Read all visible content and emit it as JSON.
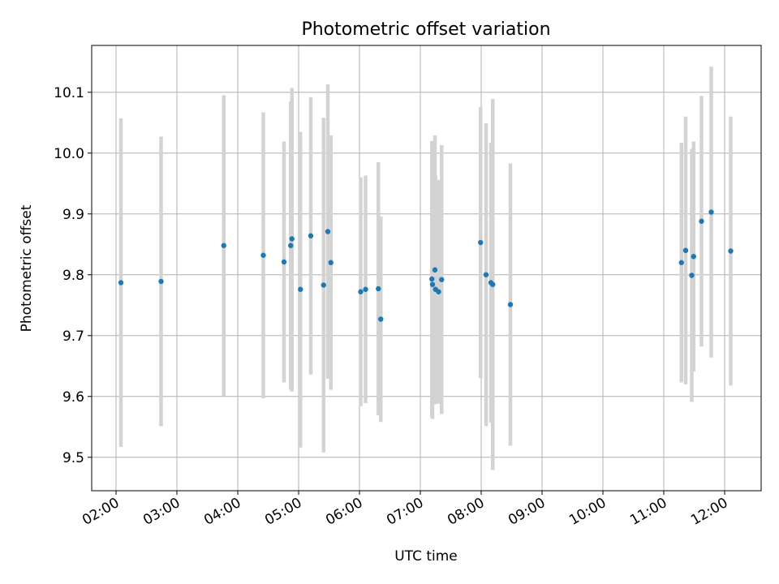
{
  "chart_data": {
    "type": "scatter",
    "title": "Photometric offset variation",
    "xlabel": "UTC time",
    "ylabel": "Photometric offset",
    "x_unit": "hours UTC",
    "xlim": [
      1.6,
      12.6
    ],
    "ylim": [
      9.445,
      10.177
    ],
    "x_ticks": [
      2,
      3,
      4,
      5,
      6,
      7,
      8,
      9,
      10,
      11,
      12
    ],
    "x_tick_labels": [
      "02:00",
      "03:00",
      "04:00",
      "05:00",
      "06:00",
      "07:00",
      "08:00",
      "09:00",
      "10:00",
      "11:00",
      "12:00"
    ],
    "y_ticks": [
      9.5,
      9.6,
      9.7,
      9.8,
      9.9,
      10.0,
      10.1
    ],
    "y_tick_labels": [
      "9.5",
      "9.6",
      "9.7",
      "9.8",
      "9.9",
      "10.0",
      "10.1"
    ],
    "grid": true,
    "point_color": "#1f77b4",
    "errorbar_color": "#d3d3d3",
    "points": [
      {
        "x": 2.08,
        "y": 9.787,
        "ylo": 9.517,
        "yhi": 10.057
      },
      {
        "x": 2.74,
        "y": 9.789,
        "ylo": 9.551,
        "yhi": 10.027
      },
      {
        "x": 3.77,
        "y": 9.848,
        "ylo": 9.601,
        "yhi": 10.095
      },
      {
        "x": 4.42,
        "y": 9.832,
        "ylo": 9.597,
        "yhi": 10.067
      },
      {
        "x": 4.76,
        "y": 9.821,
        "ylo": 9.623,
        "yhi": 10.019
      },
      {
        "x": 4.87,
        "y": 9.848,
        "ylo": 9.611,
        "yhi": 10.085
      },
      {
        "x": 4.89,
        "y": 9.859,
        "ylo": 9.608,
        "yhi": 10.107
      },
      {
        "x": 5.03,
        "y": 9.776,
        "ylo": 9.516,
        "yhi": 10.035
      },
      {
        "x": 5.2,
        "y": 9.864,
        "ylo": 9.636,
        "yhi": 10.092
      },
      {
        "x": 5.41,
        "y": 9.783,
        "ylo": 9.508,
        "yhi": 10.058
      },
      {
        "x": 5.48,
        "y": 9.871,
        "ylo": 9.629,
        "yhi": 10.113
      },
      {
        "x": 5.53,
        "y": 9.82,
        "ylo": 9.611,
        "yhi": 10.029
      },
      {
        "x": 6.02,
        "y": 9.772,
        "ylo": 9.584,
        "yhi": 9.96
      },
      {
        "x": 6.1,
        "y": 9.776,
        "ylo": 9.589,
        "yhi": 9.963
      },
      {
        "x": 6.31,
        "y": 9.777,
        "ylo": 9.569,
        "yhi": 9.985
      },
      {
        "x": 6.35,
        "y": 9.727,
        "ylo": 9.558,
        "yhi": 9.896
      },
      {
        "x": 7.19,
        "y": 9.793,
        "ylo": 9.566,
        "yhi": 10.02
      },
      {
        "x": 7.2,
        "y": 9.784,
        "ylo": 9.563,
        "yhi": 10.005
      },
      {
        "x": 7.24,
        "y": 9.808,
        "ylo": 9.587,
        "yhi": 10.029
      },
      {
        "x": 7.25,
        "y": 9.776,
        "ylo": 9.589,
        "yhi": 9.963
      },
      {
        "x": 7.3,
        "y": 9.772,
        "ylo": 9.588,
        "yhi": 9.956
      },
      {
        "x": 7.35,
        "y": 9.792,
        "ylo": 9.571,
        "yhi": 10.013
      },
      {
        "x": 7.99,
        "y": 9.853,
        "ylo": 9.63,
        "yhi": 10.076
      },
      {
        "x": 8.08,
        "y": 9.8,
        "ylo": 9.551,
        "yhi": 10.049
      },
      {
        "x": 8.16,
        "y": 9.787,
        "ylo": 9.557,
        "yhi": 10.017
      },
      {
        "x": 8.19,
        "y": 9.784,
        "ylo": 9.479,
        "yhi": 10.089
      },
      {
        "x": 8.48,
        "y": 9.751,
        "ylo": 9.519,
        "yhi": 9.983
      },
      {
        "x": 11.29,
        "y": 9.82,
        "ylo": 9.623,
        "yhi": 10.017
      },
      {
        "x": 11.36,
        "y": 9.84,
        "ylo": 9.62,
        "yhi": 10.06
      },
      {
        "x": 11.46,
        "y": 9.799,
        "ylo": 9.591,
        "yhi": 10.007
      },
      {
        "x": 11.49,
        "y": 9.83,
        "ylo": 9.641,
        "yhi": 10.019
      },
      {
        "x": 11.62,
        "y": 9.888,
        "ylo": 9.682,
        "yhi": 10.094
      },
      {
        "x": 11.78,
        "y": 9.903,
        "ylo": 9.664,
        "yhi": 10.142
      },
      {
        "x": 12.1,
        "y": 9.839,
        "ylo": 9.618,
        "yhi": 10.06
      }
    ]
  }
}
